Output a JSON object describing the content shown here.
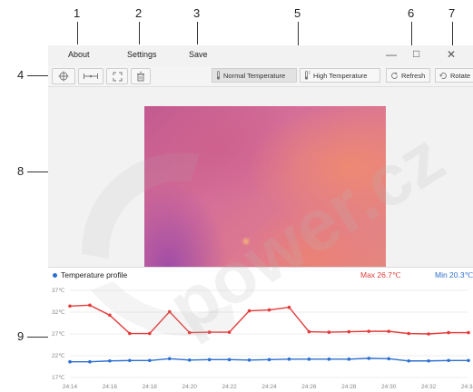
{
  "callouts": [
    "1",
    "2",
    "3",
    "4",
    "5",
    "6",
    "7",
    "8",
    "9"
  ],
  "menu": {
    "about": "About",
    "settings": "Settings",
    "save": "Save"
  },
  "window_controls": {
    "minimize": "—",
    "maximize": "□",
    "close": "✕"
  },
  "toolbar": {
    "normal_temperature": "Normal Temperature",
    "high_temperature": "High Temperature",
    "refresh": "Refresh",
    "rotate": "Rotate"
  },
  "profile": {
    "title": "Temperature profile",
    "max": "Max 26.7℃",
    "min": "Min 20.3℃"
  },
  "colors": {
    "max_series": "#e33a3a",
    "min_series": "#2c6fd0"
  },
  "watermark": "power.cz",
  "chart_data": {
    "type": "line",
    "x": [
      "24:14",
      "24:15",
      "24:16",
      "24:17",
      "24:18",
      "24:19",
      "24:20",
      "24:21",
      "24:22",
      "24:23",
      "24:24",
      "24:25",
      "24:26",
      "24:27",
      "24:28",
      "24:29",
      "24:30",
      "24:31",
      "24:32",
      "24:33",
      "24:34"
    ],
    "xticks": [
      "24:14",
      "24:16",
      "24:18",
      "24:20",
      "24:22",
      "24:24",
      "24:26",
      "24:28",
      "24:30",
      "24:32",
      "24:34"
    ],
    "yticks": [
      "17℃",
      "22℃",
      "27℃",
      "32℃",
      "37℃"
    ],
    "ylim": [
      17,
      37
    ],
    "series": [
      {
        "name": "Max 26.7℃",
        "values": [
          33.4,
          33.6,
          31.3,
          27.1,
          27.1,
          32.1,
          27.3,
          27.4,
          27.4,
          32.3,
          32.5,
          33.1,
          27.5,
          27.4,
          27.5,
          27.6,
          27.6,
          27.1,
          27.0,
          27.3,
          27.3
        ]
      },
      {
        "name": "Min 20.3℃",
        "values": [
          20.6,
          20.6,
          20.8,
          20.9,
          20.9,
          21.3,
          21.0,
          21.1,
          21.1,
          21.0,
          21.1,
          21.2,
          21.2,
          21.2,
          21.2,
          21.4,
          21.3,
          20.8,
          20.8,
          20.9,
          20.9
        ]
      }
    ]
  }
}
